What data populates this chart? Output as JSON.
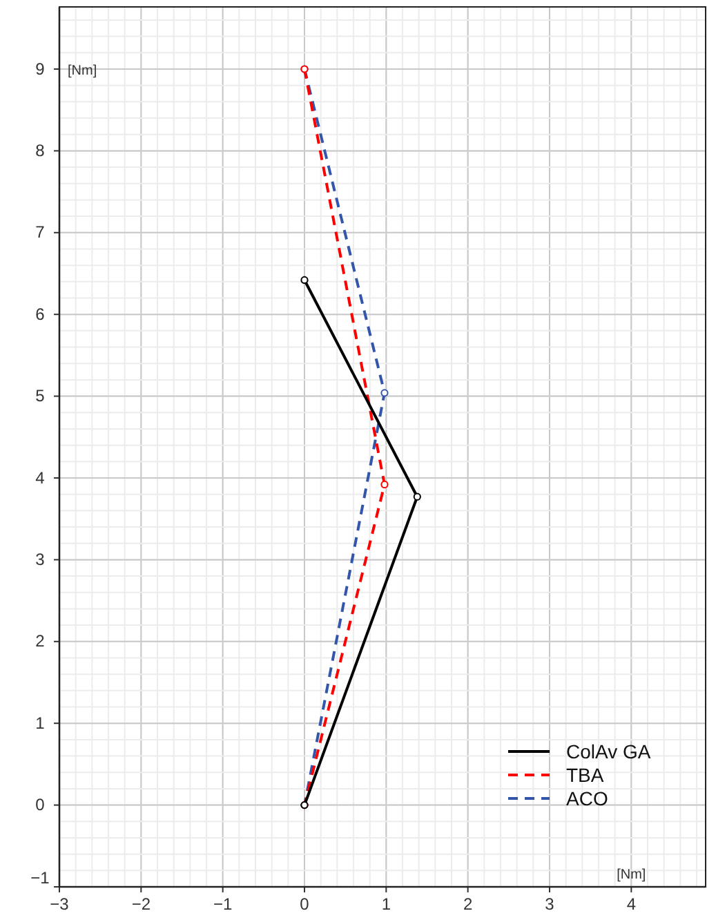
{
  "chart_data": {
    "type": "line",
    "xlabel": "[Nm]",
    "ylabel": "[Nm]",
    "xlim": [
      -3,
      4.91
    ],
    "ylim": [
      -1,
      9.76
    ],
    "xticks": [
      -3,
      -2,
      -1,
      0,
      1,
      2,
      3,
      4
    ],
    "yticks": [
      -1,
      0,
      1,
      2,
      3,
      4,
      5,
      6,
      7,
      8,
      9
    ],
    "grid": true,
    "legend": "bottom right",
    "marker": "circle",
    "series": [
      {
        "name": "ColAv GA",
        "color": "#000000",
        "line_style": "solid",
        "x": [
          0,
          1.38,
          0
        ],
        "values": [
          6.42,
          3.77,
          0
        ]
      },
      {
        "name": "TBA",
        "color": "#ff0000",
        "line_style": "dashed",
        "x": [
          0,
          0.98,
          0
        ],
        "values": [
          9,
          3.92,
          0
        ]
      },
      {
        "name": "ACO",
        "color": "#3355aa",
        "line_style": "dashed",
        "x": [
          0,
          0.98,
          0
        ],
        "values": [
          9,
          5.04,
          0
        ]
      }
    ]
  }
}
